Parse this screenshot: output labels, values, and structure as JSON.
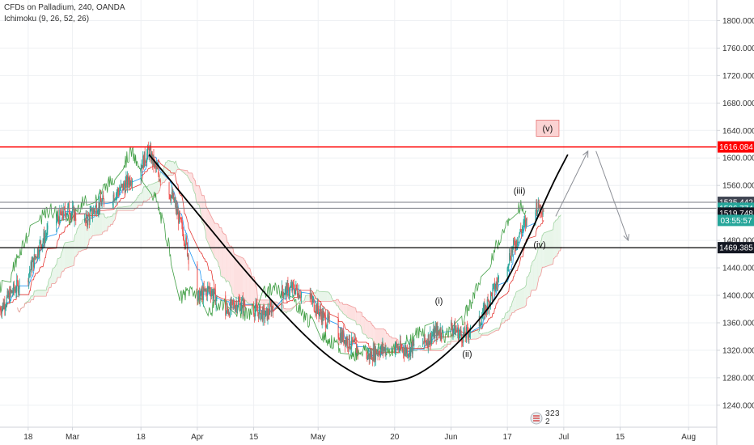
{
  "header": {
    "symbol_title": "CFDs on Palladium, 240, OANDA",
    "indicator": "Ichimoku (9, 26, 52, 26)"
  },
  "colors": {
    "grid": "#eef0f3",
    "axis_border": "#cfd2d8",
    "candle_up": "#26a69a",
    "candle_down": "#ef5350",
    "conversion_line": "#2196f3",
    "base_line": "#e53935",
    "lagging_span": "#43a047",
    "lead_a": "#a5d6a7",
    "lead_b": "#ef9a9a",
    "cloud_green": "#e8f5e9",
    "cloud_red": "#fde0e0",
    "cup_curve": "#000000",
    "resistance_line": "#ff0000",
    "projection_arrow": "#8c8f96",
    "current_price_tag": "#26a69a",
    "countdown_tag": "#26a69a",
    "dark_tag": "#131722",
    "grey_tag": "#404552"
  },
  "chart_data": {
    "type": "candlestick",
    "title": "CFDs on Palladium, 240, OANDA",
    "x_axis": {
      "type": "date",
      "range": [
        "2019-02-11",
        "2019-08-08"
      ],
      "tick_labels": [
        {
          "label": "18",
          "date": "2019-02-18"
        },
        {
          "label": "Mar",
          "date": "2019-03-01"
        },
        {
          "label": "18",
          "date": "2019-03-18"
        },
        {
          "label": "Apr",
          "date": "2019-04-01"
        },
        {
          "label": "15",
          "date": "2019-04-15"
        },
        {
          "label": "May",
          "date": "2019-05-01"
        },
        {
          "label": "20",
          "date": "2019-05-20"
        },
        {
          "label": "Jun",
          "date": "2019-06-03"
        },
        {
          "label": "17",
          "date": "2019-06-17"
        },
        {
          "label": "Jul",
          "date": "2019-07-01"
        },
        {
          "label": "15",
          "date": "2019-07-15"
        },
        {
          "label": "Aug",
          "date": "2019-08-01"
        }
      ]
    },
    "y_axis": {
      "position": "right",
      "range": [
        1208,
        1830
      ],
      "tick_values": [
        1240,
        1280,
        1320,
        1360,
        1400,
        1440,
        1480,
        1520,
        1560,
        1600,
        1640,
        1680,
        1720,
        1760,
        1800
      ],
      "tick_labels": [
        "1240.000",
        "1280.000",
        "1320.000",
        "1360.000",
        "1400.000",
        "1440.000",
        "1480.000",
        "1520.000",
        "1560.000",
        "1600.000",
        "1640.000",
        "1680.000",
        "1720.000",
        "1760.000",
        "1800.000"
      ]
    },
    "grid": true,
    "price_path": [
      [
        "2019-02-11",
        1380
      ],
      [
        "2019-02-14",
        1405
      ],
      [
        "2019-02-18",
        1430
      ],
      [
        "2019-02-21",
        1475
      ],
      [
        "2019-02-25",
        1510
      ],
      [
        "2019-02-28",
        1525
      ],
      [
        "2019-03-04",
        1505
      ],
      [
        "2019-03-07",
        1530
      ],
      [
        "2019-03-11",
        1545
      ],
      [
        "2019-03-14",
        1560
      ],
      [
        "2019-03-18",
        1590
      ],
      [
        "2019-03-20",
        1610
      ],
      [
        "2019-03-22",
        1580
      ],
      [
        "2019-03-26",
        1540
      ],
      [
        "2019-03-29",
        1480
      ],
      [
        "2019-04-01",
        1395
      ],
      [
        "2019-04-04",
        1410
      ],
      [
        "2019-04-08",
        1375
      ],
      [
        "2019-04-11",
        1390
      ],
      [
        "2019-04-15",
        1380
      ],
      [
        "2019-04-18",
        1370
      ],
      [
        "2019-04-22",
        1405
      ],
      [
        "2019-04-25",
        1410
      ],
      [
        "2019-04-29",
        1395
      ],
      [
        "2019-05-02",
        1370
      ],
      [
        "2019-05-06",
        1345
      ],
      [
        "2019-05-09",
        1330
      ],
      [
        "2019-05-13",
        1310
      ],
      [
        "2019-05-16",
        1320
      ],
      [
        "2019-05-20",
        1325
      ],
      [
        "2019-05-23",
        1320
      ],
      [
        "2019-05-27",
        1330
      ],
      [
        "2019-05-30",
        1345
      ],
      [
        "2019-06-03",
        1355
      ],
      [
        "2019-06-06",
        1340
      ],
      [
        "2019-06-10",
        1360
      ],
      [
        "2019-06-13",
        1400
      ],
      [
        "2019-06-17",
        1450
      ],
      [
        "2019-06-20",
        1490
      ],
      [
        "2019-06-24",
        1530
      ],
      [
        "2019-06-26",
        1527
      ]
    ],
    "horizontal_levels": [
      {
        "price": 1616.084,
        "label": "1616.084",
        "style": "resistance"
      },
      {
        "price": 1535.442,
        "label": "1535.442",
        "style": "grey"
      },
      {
        "price": 1526.774,
        "label": "1526.774",
        "style": "current"
      },
      {
        "price": 1519.748,
        "label": "1519.748",
        "style": "dark-tag"
      },
      {
        "price": 1469.385,
        "label": "1469.385",
        "style": "support"
      }
    ],
    "countdown": "03:55:57",
    "annotations": [
      {
        "text": "(i)",
        "date": "2019-05-31",
        "price": 1390
      },
      {
        "text": "(ii)",
        "date": "2019-06-07",
        "price": 1313
      },
      {
        "text": "(iii)",
        "date": "2019-06-20",
        "price": 1550
      },
      {
        "text": "(iv)",
        "date": "2019-06-25",
        "price": 1472
      },
      {
        "text": "(v)",
        "date": "2019-06-27",
        "price": 1641
      }
    ],
    "cup_curve": [
      [
        "2019-03-20",
        1605
      ],
      [
        "2019-04-01",
        1520
      ],
      [
        "2019-04-15",
        1420
      ],
      [
        "2019-05-01",
        1320
      ],
      [
        "2019-05-12",
        1278
      ],
      [
        "2019-05-18",
        1272
      ],
      [
        "2019-05-26",
        1282
      ],
      [
        "2019-06-05",
        1330
      ],
      [
        "2019-06-15",
        1400
      ],
      [
        "2019-06-22",
        1480
      ],
      [
        "2019-06-28",
        1560
      ],
      [
        "2019-07-02",
        1605
      ]
    ],
    "projection_arrows": [
      {
        "from": [
          "2019-06-29",
          1515
        ],
        "to": [
          "2019-07-07",
          1610
        ]
      },
      {
        "from": [
          "2019-07-09",
          1610
        ],
        "to": [
          "2019-07-17",
          1480
        ]
      }
    ]
  }
}
